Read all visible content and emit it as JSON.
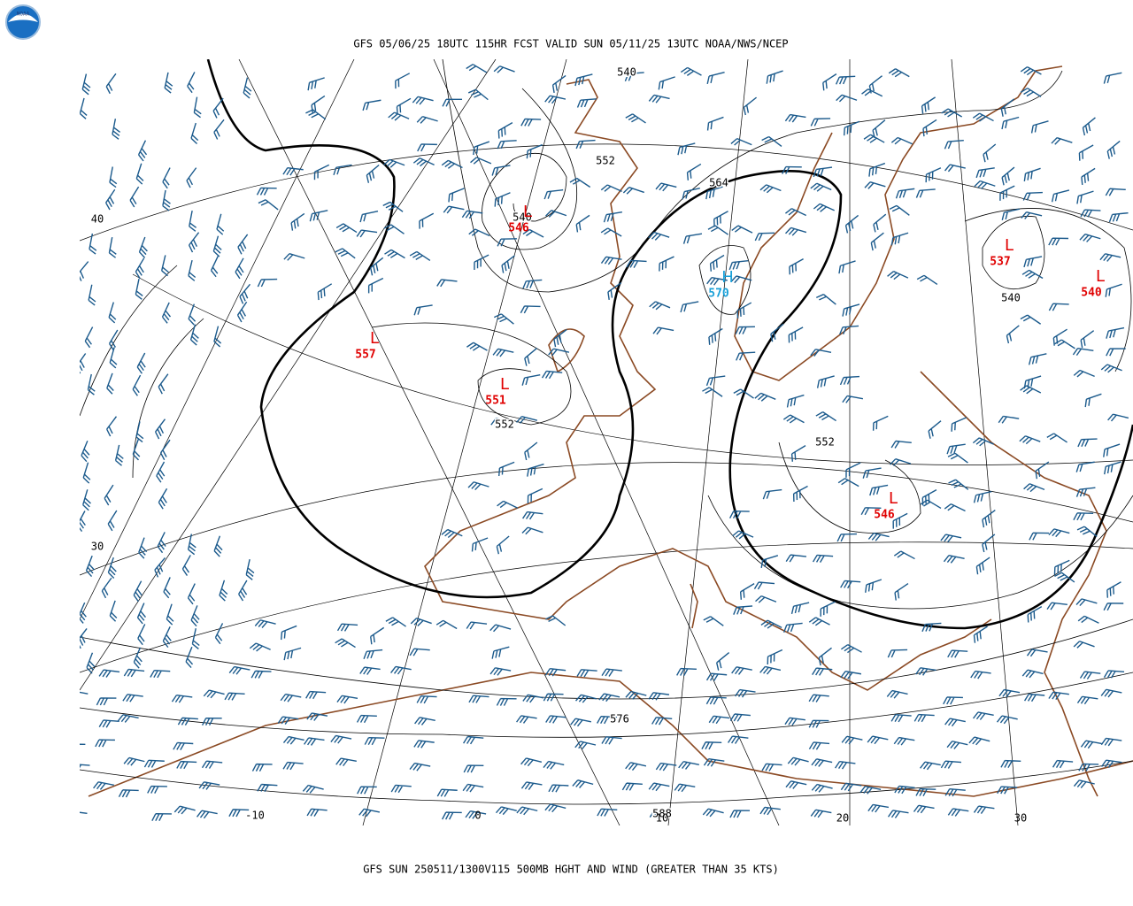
{
  "header": {
    "title": "GFS 05/06/25 18UTC 115HR FCST VALID SUN 05/11/25 13UTC NOAA/NWS/NCEP",
    "logo": "NOAA"
  },
  "footer": {
    "caption": "GFS SUN 250511/1300V115 500MB HGHT AND WIND (GREATER THAN 35 KTS)"
  },
  "contour_labels": [
    "540",
    "552",
    "564",
    "540",
    "552",
    "552",
    "540",
    "576",
    "588"
  ],
  "centers": [
    {
      "symbol": "L",
      "value": "546"
    },
    {
      "symbol": "L",
      "value": "557"
    },
    {
      "symbol": "L",
      "value": "551"
    },
    {
      "symbol": "H",
      "value": "570"
    },
    {
      "symbol": "L",
      "value": "537"
    },
    {
      "symbol": "L",
      "value": "540"
    },
    {
      "symbol": "L",
      "value": "546"
    }
  ],
  "grid_labels": [
    "40",
    "30",
    "-10",
    "0",
    "10",
    "20",
    "30"
  ]
}
